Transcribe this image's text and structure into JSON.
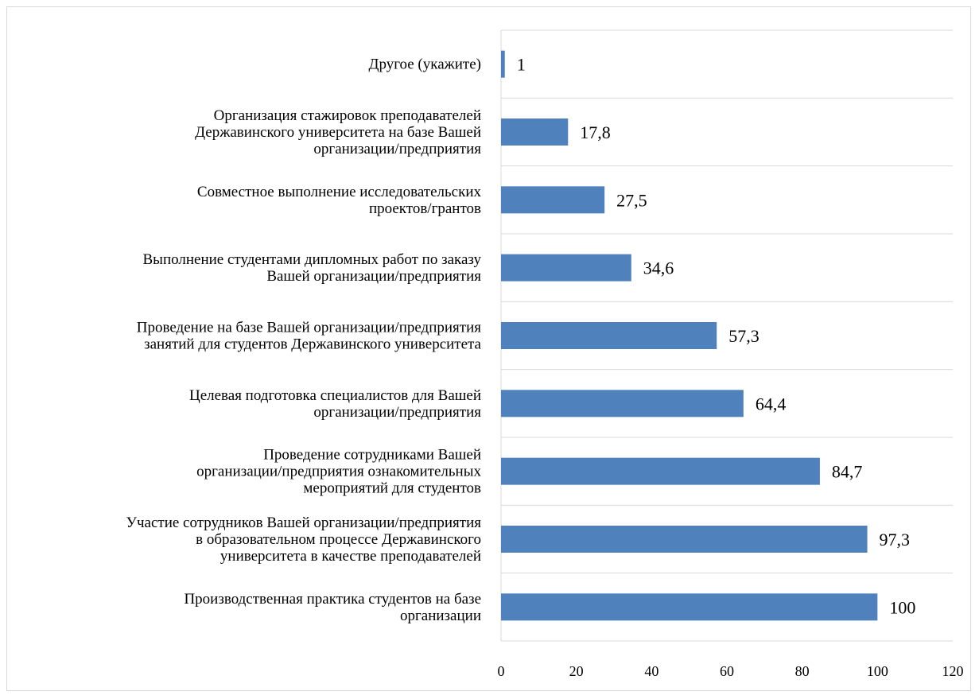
{
  "chart_data": {
    "type": "bar",
    "orientation": "horizontal",
    "categories": [
      "Другое (укажите)",
      "Организация стажировок преподавателей Державинского университета на базе Вашей организации/предприятия",
      "Совместное выполнение исследовательских проектов/грантов",
      "Выполнение студентами дипломных работ по заказу Вашей организации/предприятия",
      "Проведение на базе Вашей организации/предприятия занятий для студентов Державинского университета",
      "Целевая подготовка специалистов для Вашей организации/предприятия",
      "Проведение сотрудниками Вашей организации/предприятия ознакомительных мероприятий для студентов",
      "Участие сотрудников Вашей организации/предприятия в образовательном процессе Державинского университета в качестве преподавателей",
      "Производственная практика студентов на базе организации"
    ],
    "category_lines": [
      [
        "Другое (укажите)"
      ],
      [
        "Организация стажировок преподавателей",
        "Державинского университета на базе Вашей",
        "организации/предприятия"
      ],
      [
        "Совместное выполнение исследовательских",
        "проектов/грантов"
      ],
      [
        "Выполнение студентами дипломных работ по заказу",
        "Вашей организации/предприятия"
      ],
      [
        "Проведение на базе Вашей организации/предприятия",
        "занятий для студентов Державинского университета"
      ],
      [
        "Целевая подготовка специалистов для Вашей",
        "организации/предприятия"
      ],
      [
        "Проведение сотрудниками Вашей",
        "организации/предприятия ознакомительных",
        "мероприятий для студентов"
      ],
      [
        "Участие сотрудников Вашей организации/предприятия",
        "в образовательном процессе Державинского",
        "университета в качестве преподавателей"
      ],
      [
        "Производственная практика студентов на базе",
        "организации"
      ]
    ],
    "values": [
      1,
      17.8,
      27.5,
      34.6,
      57.3,
      64.4,
      84.7,
      97.3,
      100
    ],
    "value_labels": [
      "1",
      "17,8",
      "27,5",
      "34,6",
      "57,3",
      "64,4",
      "84,7",
      "97,3",
      "100"
    ],
    "xlim": [
      0,
      120
    ],
    "xticks": [
      "0",
      "20",
      "40",
      "60",
      "80",
      "100",
      "120"
    ],
    "title": "",
    "xlabel": "",
    "ylabel": "",
    "grid": "vertical-category-lines",
    "legend": "none",
    "colors": {
      "bar": "#4f81bd",
      "grid": "#d9d9d9",
      "text": "#000000",
      "frame": "#d9d9d9"
    }
  }
}
